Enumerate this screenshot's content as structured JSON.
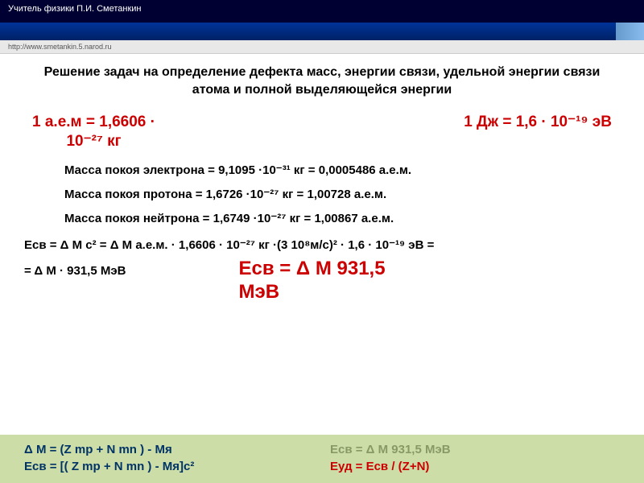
{
  "header": {
    "author": "Учитель физики П.И. Сметанкин",
    "url": "http://www.smetankin.5.narod.ru"
  },
  "title": "Решение задач на определение дефекта масс, энергии связи, удельной энергии связи атома и полной выделяющейся энергии",
  "constants": {
    "amu_line1": "1 а.е.м = 1,6606 ·",
    "amu_line2": "10⁻²⁷ кг",
    "ev": "1 Дж = 1,6 · 10⁻¹⁹ эВ"
  },
  "masses": {
    "electron": "Масса покоя электрона = 9,1095 ·10⁻³¹ кг = 0,0005486 а.е.м.",
    "proton": "Масса покоя протона    = 1,6726 ·10⁻²⁷ кг = 1,00728 а.е.м.",
    "neutron": "Масса покоя нейтрона  = 1,6749 ·10⁻²⁷ кг = 1,00867 а.е.м."
  },
  "derivation": {
    "line1": "Eсв = Δ M c² = Δ M а.е.м. · 1,6606 · 10⁻²⁷ кг ·(3 10⁸м/с)² · 1,6 · 10⁻¹⁹ эВ =",
    "line2": "= Δ M · 931,5 МэВ",
    "result1": "Eсв  = Δ M 931,5",
    "result2": "МэВ"
  },
  "footer": {
    "dm": "Δ M = (Z mр + N mn ) - Mя",
    "esv1": "Eсв = Δ M 931,5 МэВ",
    "esv2": "Eсв = [( Z mр + N mn ) - Mя]c²",
    "eud": "Eуд = Eсв / (Z+N)"
  },
  "colors": {
    "red": "#cc0000",
    "darkblue": "#003366",
    "footer_bg": "#ccdda8",
    "gray_green": "#889966"
  }
}
